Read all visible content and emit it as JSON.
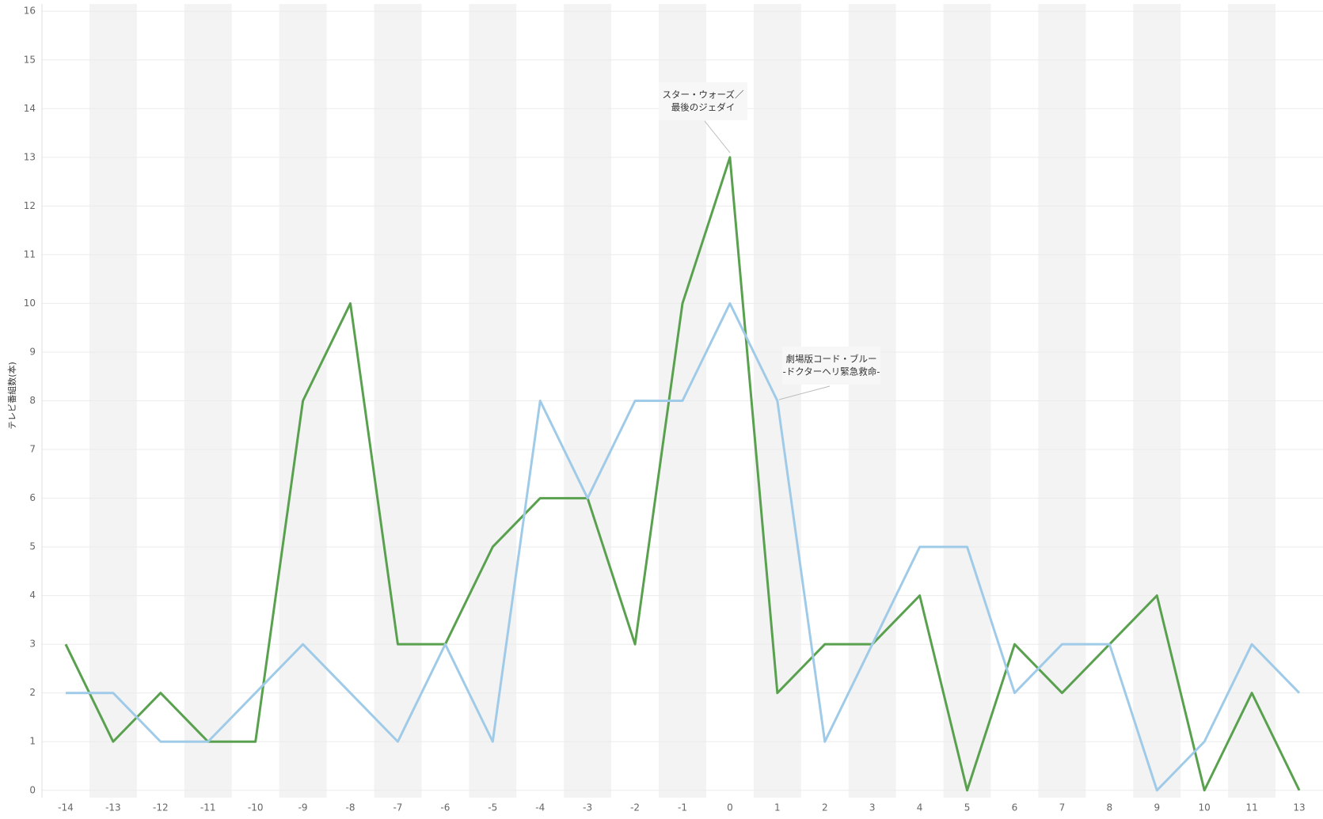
{
  "chart_data": {
    "type": "line",
    "y_label": "テレビ番組数(本)",
    "categories": [
      "-14",
      "-13",
      "-12",
      "-11",
      "-10",
      "-9",
      "-8",
      "-7",
      "-6",
      "-5",
      "-4",
      "-3",
      "-2",
      "-1",
      "0",
      "1",
      "2",
      "3",
      "4",
      "5",
      "6",
      "7",
      "8",
      "9",
      "10",
      "11",
      "13"
    ],
    "series": [
      {
        "color": "#59a14f",
        "values": [
          3,
          1,
          2,
          1,
          1,
          8,
          10,
          3,
          3,
          5,
          6,
          6,
          3,
          10,
          13,
          2,
          3,
          3,
          4,
          0,
          3,
          2,
          3,
          4,
          0,
          2,
          0
        ]
      },
      {
        "color": "#a0cbe8",
        "values": [
          2,
          2,
          1,
          1,
          2,
          3,
          2,
          1,
          3,
          1,
          8,
          6,
          8,
          8,
          10,
          8,
          1,
          3,
          5,
          5,
          2,
          3,
          3,
          0,
          1,
          3,
          2
        ]
      }
    ],
    "ylim": [
      -0.15,
      16.15
    ],
    "yticks": [
      0,
      1,
      2,
      3,
      4,
      5,
      6,
      7,
      8,
      9,
      10,
      11,
      12,
      13,
      14,
      15,
      16
    ],
    "grid": true,
    "annotations": [
      {
        "lines": [
          "スター・ウォーズ／",
          "最後のジェダイ"
        ]
      },
      {
        "lines": [
          "劇場版コード・ブルー",
          "-ドクターヘリ緊急救命-"
        ]
      }
    ]
  }
}
